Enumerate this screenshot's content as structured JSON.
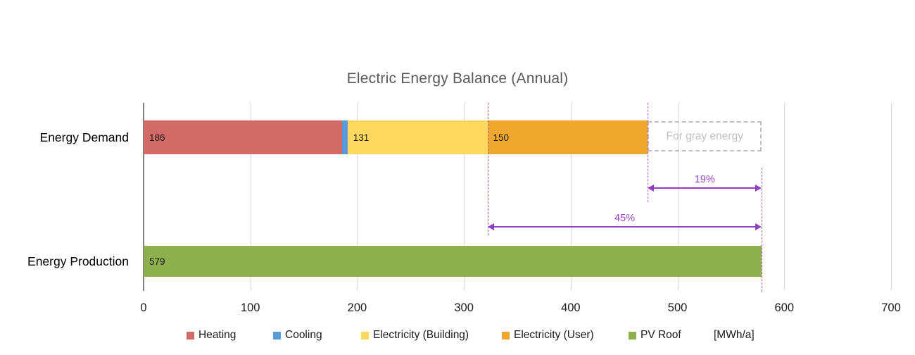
{
  "title": "Electric Energy Balance (Annual)",
  "chart_data": {
    "type": "bar",
    "orientation": "horizontal",
    "title": "Electric Energy Balance (Annual)",
    "unit_label": "[MWh/a]",
    "categories": [
      "Energy Demand",
      "Energy Production"
    ],
    "x_axis": {
      "min": 0,
      "max": 700,
      "ticks": [
        0,
        100,
        200,
        300,
        400,
        500,
        600,
        700
      ],
      "grid": true
    },
    "series_demand": [
      {
        "name": "Heating",
        "value": 186,
        "data_label": "186",
        "color": "#d06b68"
      },
      {
        "name": "Cooling",
        "value": 5,
        "data_label": "",
        "color": "#5b9bd5"
      },
      {
        "name": "Electricity (Building)",
        "value": 131,
        "data_label": "131",
        "color": "#ffd95f"
      },
      {
        "name": "Electricity (User)",
        "value": 150,
        "data_label": "150",
        "color": "#efa82d"
      }
    ],
    "gray_energy_box": {
      "label": "For gray energy",
      "value_estimated": 107,
      "from": 472,
      "to": 579
    },
    "series_production": [
      {
        "name": "PV Roof",
        "value": 579,
        "data_label": "579",
        "color": "#8fb04f"
      }
    ],
    "annotations": [
      {
        "label": "19%",
        "from": 472,
        "to": 579,
        "level": "upper"
      },
      {
        "label": "45%",
        "from": 322,
        "to": 579,
        "level": "lower"
      }
    ],
    "guide_lines_at": [
      322,
      472,
      579
    ],
    "legend": [
      {
        "label": "Heating",
        "color": "#d06b68"
      },
      {
        "label": "Cooling",
        "color": "#5b9bd5"
      },
      {
        "label": "Electricity (Building)",
        "color": "#ffd95f"
      },
      {
        "label": "Electricity (User)",
        "color": "#efa82d"
      },
      {
        "label": "PV Roof",
        "color": "#8fb04f"
      },
      {
        "label": "[MWh/a]",
        "color": null
      }
    ],
    "accent_purple": "#9a46c8",
    "gray_dashed": "#bfbfbf"
  }
}
